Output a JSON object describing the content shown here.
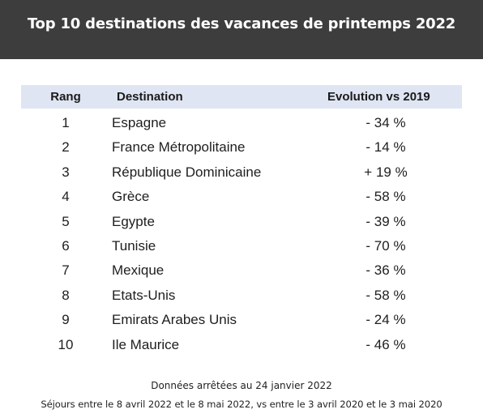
{
  "title": "Top 10 destinations des vacances de printemps 2022",
  "table": {
    "headers": {
      "rank": "Rang",
      "destination": "Destination",
      "evolution": "Evolution vs 2019"
    },
    "rows": [
      {
        "rank": "1",
        "destination": "Espagne",
        "evolution": "- 34 %"
      },
      {
        "rank": "2",
        "destination": "France Métropolitaine",
        "evolution": "- 14 %"
      },
      {
        "rank": "3",
        "destination": "République Dominicaine",
        "evolution": "+ 19 %"
      },
      {
        "rank": "4",
        "destination": "Grèce",
        "evolution": "- 58 %"
      },
      {
        "rank": "5",
        "destination": "Egypte",
        "evolution": "- 39 %"
      },
      {
        "rank": "6",
        "destination": "Tunisie",
        "evolution": "- 70 %"
      },
      {
        "rank": "7",
        "destination": "Mexique",
        "evolution": "- 36 %"
      },
      {
        "rank": "8",
        "destination": "Etats-Unis",
        "evolution": "- 58 %"
      },
      {
        "rank": "9",
        "destination": "Emirats Arabes Unis",
        "evolution": "- 24 %"
      },
      {
        "rank": "10",
        "destination": "Ile Maurice",
        "evolution": "- 46 %"
      }
    ]
  },
  "footer": {
    "line1": "Données arrêtées au 24 janvier 2022",
    "line2": "Séjours entre le 8 avril 2022 et le 8 mai 2022, vs entre le 3 avril 2020 et le 3 mai 2020"
  },
  "colors": {
    "banner": "#3d3d3d",
    "header_row": "#dfe5f3"
  }
}
